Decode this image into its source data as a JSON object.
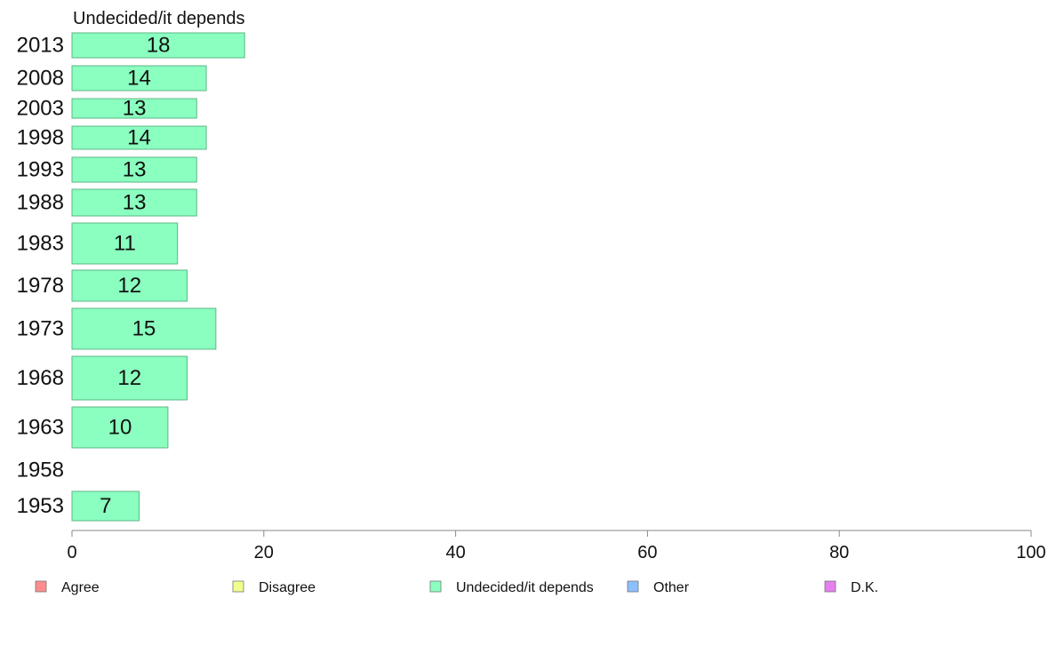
{
  "chart_data": {
    "type": "bar",
    "orientation": "horizontal",
    "title": "Undecided/it depends",
    "categories": [
      "2013",
      "2008",
      "2003",
      "1998",
      "1993",
      "1988",
      "1983",
      "1978",
      "1973",
      "1968",
      "1963",
      "1958",
      "1953"
    ],
    "values": [
      18,
      14,
      13,
      14,
      13,
      13,
      11,
      12,
      15,
      12,
      10,
      null,
      7
    ],
    "value_labels": [
      "18",
      "14",
      "13",
      "14",
      "13",
      "13",
      "11",
      "12",
      "15",
      "12",
      "10",
      "",
      "7"
    ],
    "xlim": [
      0,
      100
    ],
    "x_ticks": [
      0,
      20,
      40,
      60,
      80,
      100
    ],
    "x_tick_labels": [
      "0",
      "20",
      "40",
      "60",
      "80",
      "100"
    ],
    "bar_color": "#8affbf",
    "bar_border_color": "#5fb587",
    "grid": false,
    "legend_position": "bottom",
    "legend": [
      {
        "label": "Agree",
        "color": "#ff8c8c"
      },
      {
        "label": "Disagree",
        "color": "#f0ff8c"
      },
      {
        "label": "Undecided/it depends",
        "color": "#8affbf"
      },
      {
        "label": "Other",
        "color": "#8cbfff"
      },
      {
        "label": "D.K.",
        "color": "#e680f0"
      }
    ]
  }
}
